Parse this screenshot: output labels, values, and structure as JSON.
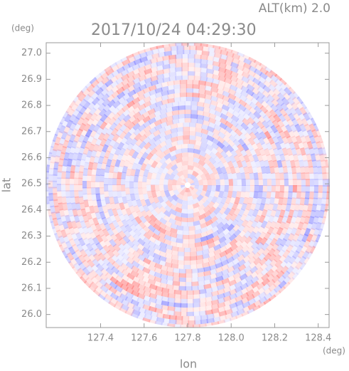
{
  "chart_data": {
    "type": "radar-ppi",
    "title": "2017/10/24 04:29:30",
    "subtitle": "ALT(km) 2.0",
    "x_label": "lon",
    "y_label": "lat",
    "x_unit": "(deg)",
    "y_unit": "(deg)",
    "xlim": [
      127.15,
      128.45
    ],
    "ylim": [
      25.95,
      27.04
    ],
    "xticks": [
      127.4,
      127.6,
      127.8,
      {
        "value": 128,
        "label": "128.0"
      },
      128.2,
      128.4
    ],
    "yticks": [
      {
        "value": 26,
        "label": "26.0"
      },
      26.1,
      26.2,
      26.3,
      26.4,
      26.5,
      26.6,
      26.7,
      26.8,
      26.9,
      {
        "value": 27,
        "label": "27.0"
      }
    ]
  }
}
